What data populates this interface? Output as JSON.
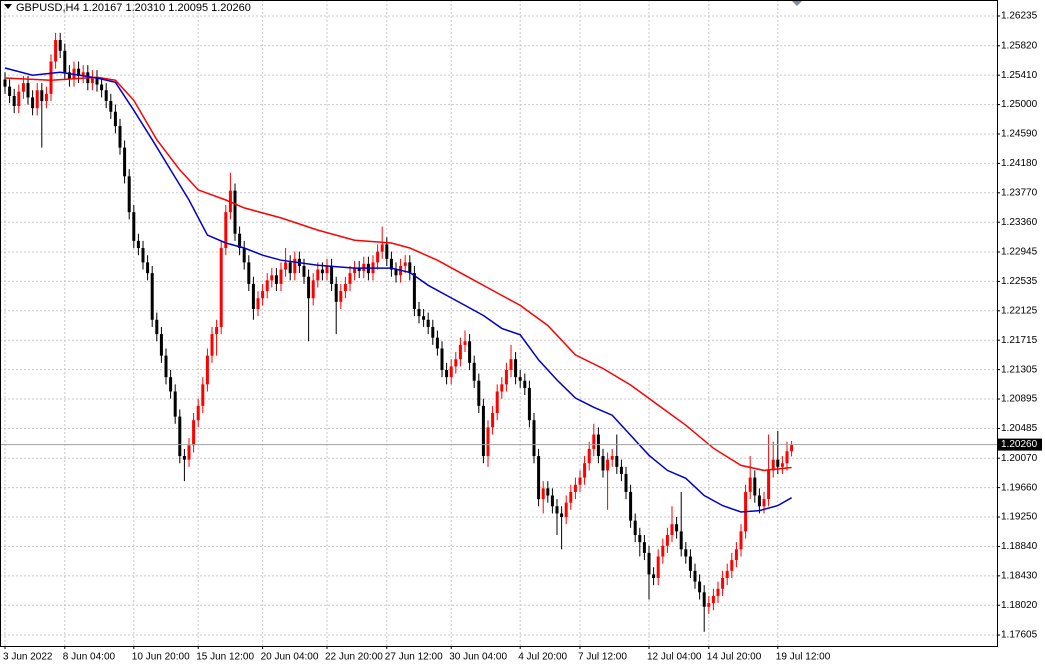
{
  "chart_data": {
    "type": "candlestick",
    "title": "GBPUSD,H4",
    "title_values": [
      "1.20167",
      "1.20310",
      "1.20095",
      "1.20260"
    ],
    "up_color": "#ff0000",
    "down_color": "#000000",
    "grid": true,
    "ylim": [
      1.17452,
      1.26458
    ],
    "yticks": [
      {
        "value": 1.26235,
        "label": "1.26235"
      },
      {
        "value": 1.2582,
        "label": "1.25820"
      },
      {
        "value": 1.2541,
        "label": "1.25410"
      },
      {
        "value": 1.25,
        "label": "1.25000"
      },
      {
        "value": 1.2459,
        "label": "1.24590"
      },
      {
        "value": 1.2418,
        "label": "1.24180"
      },
      {
        "value": 1.2377,
        "label": "1.23770"
      },
      {
        "value": 1.2336,
        "label": "1.23360"
      },
      {
        "value": 1.22945,
        "label": "1.22945"
      },
      {
        "value": 1.22535,
        "label": "1.22535"
      },
      {
        "value": 1.22125,
        "label": "1.22125"
      },
      {
        "value": 1.21715,
        "label": "1.21715"
      },
      {
        "value": 1.21305,
        "label": "1.21305"
      },
      {
        "value": 1.20895,
        "label": "1.20895"
      },
      {
        "value": 1.20485,
        "label": "1.20485"
      },
      {
        "value": 1.2007,
        "label": "1.20070"
      },
      {
        "value": 1.1966,
        "label": "1.19660"
      },
      {
        "value": 1.1925,
        "label": "1.19250"
      },
      {
        "value": 1.1884,
        "label": "1.18840"
      },
      {
        "value": 1.1843,
        "label": "1.18430"
      },
      {
        "value": 1.1802,
        "label": "1.18020"
      },
      {
        "value": 1.17605,
        "label": "1.17605"
      }
    ],
    "current_price": {
      "value": 1.2026,
      "label": "1.20260"
    },
    "categories": [
      "3 Jun 2022",
      null,
      null,
      null,
      null,
      null,
      null,
      null,
      null,
      null,
      null,
      null,
      null,
      "8 Jun 04:00",
      null,
      null,
      null,
      null,
      null,
      null,
      null,
      null,
      null,
      null,
      null,
      null,
      null,
      null,
      "10 Jun 20:00",
      null,
      null,
      null,
      null,
      null,
      null,
      null,
      null,
      null,
      null,
      null,
      null,
      null,
      "15 Jun 12:00",
      null,
      null,
      null,
      null,
      null,
      null,
      null,
      null,
      null,
      null,
      null,
      null,
      null,
      "20 Jun 04:00",
      null,
      null,
      null,
      null,
      null,
      null,
      null,
      null,
      null,
      null,
      null,
      null,
      null,
      "22 Jun 20:00",
      null,
      null,
      null,
      null,
      null,
      null,
      null,
      null,
      null,
      null,
      null,
      null,
      "27 Jun 12:00",
      null,
      null,
      null,
      null,
      null,
      null,
      null,
      null,
      null,
      null,
      null,
      null,
      null,
      "30 Jun 04:00",
      null,
      null,
      null,
      null,
      null,
      null,
      null,
      null,
      null,
      null,
      null,
      null,
      null,
      null,
      "4 Jul 20:00",
      null,
      null,
      null,
      null,
      null,
      null,
      null,
      null,
      null,
      null,
      null,
      null,
      "7 Jul 12:00",
      null,
      null,
      null,
      null,
      null,
      null,
      null,
      null,
      null,
      null,
      null,
      null,
      null,
      null,
      "12 Jul 04:00",
      null,
      null,
      null,
      null,
      null,
      null,
      null,
      null,
      null,
      null,
      null,
      null,
      "14 Jul 20:00",
      null,
      null,
      null,
      null,
      null,
      null,
      null,
      null,
      null,
      null,
      null,
      null,
      null,
      null,
      "19 Jul 12:00",
      null,
      null,
      null
    ],
    "open": [
      1.2535,
      1.2525,
      1.2512,
      1.2498,
      1.2518,
      1.253,
      1.251,
      1.2495,
      1.252,
      1.2505,
      1.2515,
      1.256,
      1.259,
      1.2575,
      1.2545,
      1.2535,
      1.255,
      1.254,
      1.2545,
      1.253,
      1.2538,
      1.2528,
      1.252,
      1.2505,
      1.249,
      1.247,
      1.244,
      1.24,
      1.235,
      1.231,
      1.23,
      1.228,
      1.2265,
      1.22,
      1.218,
      1.215,
      1.212,
      1.21,
      1.2065,
      1.201,
      1.2005,
      1.2025,
      1.206,
      1.208,
      1.211,
      1.215,
      1.218,
      1.219,
      1.23,
      1.235,
      1.238,
      1.232,
      1.23,
      1.228,
      1.225,
      1.2215,
      1.223,
      1.224,
      1.2255,
      1.2262,
      1.225,
      1.227,
      1.228,
      1.2265,
      1.2285,
      1.2275,
      1.226,
      1.223,
      1.2255,
      1.227,
      1.2265,
      1.2275,
      1.225,
      1.2225,
      1.224,
      1.225,
      1.2265,
      1.2272,
      1.2268,
      1.2278,
      1.2265,
      1.228,
      1.2295,
      1.2305,
      1.2285,
      1.227,
      1.2262,
      1.2275,
      1.228,
      1.2265,
      1.2215,
      1.2205,
      1.22,
      1.219,
      1.2175,
      1.216,
      1.213,
      1.212,
      1.2135,
      1.2145,
      1.2165,
      1.217,
      1.214,
      1.2115,
      1.208,
      1.201,
      1.205,
      1.207,
      1.21,
      1.211,
      1.213,
      1.2145,
      1.212,
      1.2115,
      1.2105,
      1.206,
      1.201,
      1.195,
      1.1965,
      1.1955,
      1.194,
      1.193,
      1.1925,
      1.1945,
      1.196,
      1.197,
      1.198,
      1.2,
      1.202,
      1.204,
      1.201,
      1.199,
      1.2005,
      1.201,
      1.1995,
      1.1985,
      1.196,
      1.192,
      1.19,
      1.189,
      1.1875,
      1.1845,
      1.184,
      1.187,
      1.1885,
      1.19,
      1.1915,
      1.1905,
      1.188,
      1.187,
      1.185,
      1.1835,
      1.182,
      1.18,
      1.1805,
      1.1815,
      1.1825,
      1.184,
      1.185,
      1.1865,
      1.188,
      1.1905,
      1.196,
      1.198,
      1.1955,
      1.194,
      1.195,
      1.199,
      1.2005,
      1.1995,
      1.2,
      1.20167
    ],
    "high": [
      1.2545,
      1.2535,
      1.2522,
      1.2528,
      1.254,
      1.254,
      1.252,
      1.253,
      1.253,
      1.2525,
      1.257,
      1.26,
      1.26,
      1.2585,
      1.2555,
      1.256,
      1.256,
      1.2555,
      1.2555,
      1.2548,
      1.2548,
      1.2538,
      1.253,
      1.2515,
      1.25,
      1.248,
      1.245,
      1.241,
      1.236,
      1.232,
      1.231,
      1.229,
      1.2275,
      1.221,
      1.219,
      1.216,
      1.213,
      1.211,
      1.2075,
      1.202,
      1.2035,
      1.207,
      1.209,
      1.212,
      1.216,
      1.219,
      1.22,
      1.231,
      1.236,
      1.2405,
      1.239,
      1.233,
      1.231,
      1.229,
      1.226,
      1.224,
      1.225,
      1.2265,
      1.2272,
      1.2272,
      1.228,
      1.23,
      1.229,
      1.2295,
      1.2295,
      1.2285,
      1.227,
      1.2265,
      1.228,
      1.228,
      1.2285,
      1.2285,
      1.226,
      1.225,
      1.226,
      1.2275,
      1.2282,
      1.2282,
      1.2288,
      1.2288,
      1.229,
      1.2305,
      1.233,
      1.2315,
      1.2295,
      1.228,
      1.2285,
      1.229,
      1.229,
      1.2275,
      1.2225,
      1.2215,
      1.221,
      1.22,
      1.2185,
      1.217,
      1.214,
      1.2145,
      1.2155,
      1.2175,
      1.2185,
      1.218,
      1.215,
      1.2125,
      1.209,
      1.206,
      1.208,
      1.211,
      1.212,
      1.214,
      1.2165,
      1.2155,
      1.213,
      1.2125,
      1.2115,
      1.207,
      1.202,
      1.1975,
      1.1975,
      1.1965,
      1.195,
      1.194,
      1.1955,
      1.197,
      1.198,
      1.199,
      1.201,
      1.203,
      1.2055,
      1.205,
      1.202,
      1.2015,
      1.202,
      1.204,
      1.2005,
      1.1995,
      1.197,
      1.193,
      1.191,
      1.19,
      1.1885,
      1.1855,
      1.188,
      1.1895,
      1.191,
      1.194,
      1.1925,
      1.196,
      1.189,
      1.188,
      1.186,
      1.1845,
      1.183,
      1.1815,
      1.1825,
      1.1835,
      1.185,
      1.186,
      1.1875,
      1.189,
      1.1915,
      1.197,
      1.201,
      1.199,
      1.1965,
      1.196,
      1.204,
      1.203,
      1.2045,
      1.201,
      1.203,
      1.2031
    ],
    "low": [
      1.2515,
      1.2502,
      1.2488,
      1.2488,
      1.2508,
      1.25,
      1.2485,
      1.2485,
      1.244,
      1.2495,
      1.2505,
      1.255,
      1.2565,
      1.2535,
      1.2525,
      1.2525,
      1.253,
      1.253,
      1.252,
      1.252,
      1.2518,
      1.251,
      1.2495,
      1.248,
      1.246,
      1.243,
      1.239,
      1.234,
      1.23,
      1.229,
      1.227,
      1.2255,
      1.219,
      1.217,
      1.214,
      1.211,
      1.209,
      1.2055,
      1.2,
      1.1975,
      1.1995,
      1.2015,
      1.205,
      1.207,
      1.21,
      1.214,
      1.215,
      1.218,
      1.229,
      1.234,
      1.231,
      1.229,
      1.227,
      1.224,
      1.22,
      1.2205,
      1.222,
      1.223,
      1.2245,
      1.224,
      1.224,
      1.226,
      1.2255,
      1.2255,
      1.2265,
      1.225,
      1.217,
      1.222,
      1.2245,
      1.2255,
      1.2255,
      1.224,
      1.218,
      1.2215,
      1.223,
      1.224,
      1.2255,
      1.2258,
      1.2258,
      1.2255,
      1.2255,
      1.227,
      1.2285,
      1.2275,
      1.226,
      1.2252,
      1.2252,
      1.2265,
      1.2255,
      1.2205,
      1.2195,
      1.219,
      1.218,
      1.2165,
      1.215,
      1.212,
      1.211,
      1.211,
      1.2125,
      1.2135,
      1.2155,
      1.213,
      1.2105,
      1.207,
      1.2,
      1.1995,
      1.204,
      1.206,
      1.209,
      1.21,
      1.212,
      1.211,
      1.2105,
      1.2095,
      1.205,
      1.2,
      1.194,
      1.193,
      1.1945,
      1.193,
      1.19,
      1.188,
      1.1915,
      1.1935,
      1.195,
      1.196,
      1.197,
      1.199,
      1.201,
      1.2,
      1.198,
      1.1935,
      1.1995,
      1.1985,
      1.1975,
      1.195,
      1.191,
      1.189,
      1.187,
      1.1865,
      1.181,
      1.183,
      1.183,
      1.186,
      1.1875,
      1.189,
      1.1895,
      1.187,
      1.186,
      1.184,
      1.1825,
      1.181,
      1.1765,
      1.179,
      1.1795,
      1.1805,
      1.1815,
      1.183,
      1.184,
      1.1855,
      1.187,
      1.1895,
      1.195,
      1.1945,
      1.193,
      1.193,
      1.194,
      1.198,
      1.1985,
      1.1985,
      1.199,
      1.20095
    ],
    "close": [
      1.2525,
      1.2512,
      1.2498,
      1.2518,
      1.253,
      1.251,
      1.2495,
      1.252,
      1.2505,
      1.2515,
      1.256,
      1.259,
      1.2575,
      1.2545,
      1.2535,
      1.255,
      1.254,
      1.2545,
      1.253,
      1.2538,
      1.2528,
      1.252,
      1.2505,
      1.249,
      1.247,
      1.244,
      1.24,
      1.235,
      1.231,
      1.23,
      1.228,
      1.2265,
      1.22,
      1.218,
      1.215,
      1.212,
      1.21,
      1.2065,
      1.201,
      1.2005,
      1.2025,
      1.206,
      1.208,
      1.211,
      1.215,
      1.218,
      1.219,
      1.23,
      1.235,
      1.238,
      1.232,
      1.23,
      1.228,
      1.225,
      1.2215,
      1.223,
      1.224,
      1.2255,
      1.2262,
      1.225,
      1.227,
      1.228,
      1.2265,
      1.2285,
      1.2275,
      1.226,
      1.223,
      1.2255,
      1.227,
      1.2265,
      1.2275,
      1.225,
      1.2225,
      1.224,
      1.225,
      1.2265,
      1.2272,
      1.2268,
      1.2278,
      1.2265,
      1.228,
      1.2295,
      1.2305,
      1.2285,
      1.227,
      1.2262,
      1.2275,
      1.228,
      1.2265,
      1.2215,
      1.2205,
      1.22,
      1.219,
      1.2175,
      1.216,
      1.213,
      1.212,
      1.2135,
      1.2145,
      1.2165,
      1.217,
      1.214,
      1.2115,
      1.208,
      1.201,
      1.205,
      1.207,
      1.21,
      1.211,
      1.213,
      1.2145,
      1.212,
      1.2115,
      1.2105,
      1.206,
      1.201,
      1.195,
      1.1965,
      1.1955,
      1.194,
      1.193,
      1.1925,
      1.1945,
      1.196,
      1.197,
      1.198,
      1.2,
      1.202,
      1.204,
      1.201,
      1.199,
      1.2005,
      1.201,
      1.1995,
      1.1985,
      1.196,
      1.192,
      1.19,
      1.189,
      1.1875,
      1.1845,
      1.184,
      1.187,
      1.1885,
      1.19,
      1.1915,
      1.1905,
      1.188,
      1.187,
      1.185,
      1.1835,
      1.182,
      1.18,
      1.1805,
      1.1815,
      1.1825,
      1.184,
      1.185,
      1.1865,
      1.188,
      1.1905,
      1.196,
      1.198,
      1.1955,
      1.194,
      1.195,
      1.199,
      1.2005,
      1.1995,
      1.2,
      1.20167,
      1.2026
    ],
    "lines": [
      {
        "color": "#ff0000",
        "x": [
          0,
          10,
          20,
          24,
          28,
          33,
          38,
          42,
          48,
          52,
          60,
          68,
          76,
          84,
          88,
          94,
          100,
          106,
          112,
          118,
          124,
          130,
          136,
          142,
          148,
          154,
          160,
          165,
          171
        ],
        "values": [
          1.2537,
          1.2534,
          1.2538,
          1.2534,
          1.2506,
          1.2451,
          1.2409,
          1.2381,
          1.2367,
          1.2356,
          1.2342,
          1.2325,
          1.2311,
          1.2307,
          1.23,
          1.2283,
          1.2262,
          1.2241,
          1.222,
          1.2192,
          1.2151,
          1.2132,
          1.2109,
          1.2081,
          1.2053,
          1.2021,
          1.1997,
          1.199,
          1.1994
        ]
      },
      {
        "color": "#0000c8",
        "x": [
          0,
          6,
          12,
          20,
          24,
          28,
          32,
          36,
          40,
          44,
          48,
          52,
          56,
          60,
          68,
          76,
          84,
          88,
          92,
          96,
          100,
          104,
          108,
          112,
          116,
          120,
          124,
          128,
          132,
          136,
          140,
          144,
          148,
          152,
          156,
          160,
          164,
          168,
          171
        ],
        "values": [
          1.2551,
          1.2541,
          1.2545,
          1.2537,
          1.2531,
          1.2492,
          1.2451,
          1.2409,
          1.2367,
          1.2318,
          1.2307,
          1.23,
          1.229,
          1.2283,
          1.2276,
          1.2272,
          1.2272,
          1.2266,
          1.2248,
          1.2234,
          1.222,
          1.2206,
          1.2188,
          1.2179,
          1.2144,
          1.2116,
          1.2091,
          1.2078,
          1.2067,
          1.2039,
          1.2011,
          1.199,
          1.1979,
          1.1955,
          1.1941,
          1.1932,
          1.1934,
          1.1941,
          1.1952
        ]
      }
    ]
  }
}
